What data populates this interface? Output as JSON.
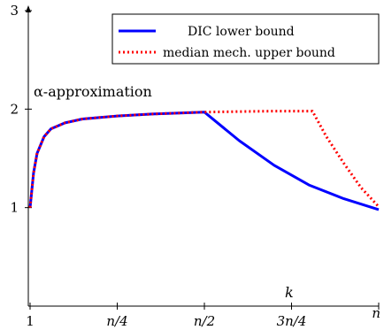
{
  "chart_data": {
    "type": "line",
    "title": "",
    "xlabel": "k",
    "ylabel": "α-approximation",
    "x_ticks": [
      "1",
      "n/4",
      "n/2",
      "3n/4",
      "n"
    ],
    "y_ticks": [
      "1",
      "2",
      "3"
    ],
    "x_range_fraction_of_n": [
      0,
      1
    ],
    "ylim": [
      0,
      3
    ],
    "grid": false,
    "legend_position": "top-right",
    "series": [
      {
        "name": "DIC lower bound",
        "color": "#0000ff",
        "style": "solid",
        "x_fraction_of_n": [
          0.0,
          0.01,
          0.02,
          0.04,
          0.06,
          0.1,
          0.15,
          0.25,
          0.35,
          0.5,
          0.6,
          0.7,
          0.8,
          0.9,
          1.0
        ],
        "values": [
          1.0,
          1.35,
          1.55,
          1.72,
          1.8,
          1.86,
          1.9,
          1.93,
          1.95,
          1.97,
          1.68,
          1.43,
          1.23,
          1.09,
          0.98
        ]
      },
      {
        "name": "median mech. upper bound",
        "color": "#ff0000",
        "style": "dotted",
        "x_fraction_of_n": [
          0.0,
          0.01,
          0.02,
          0.04,
          0.06,
          0.1,
          0.15,
          0.25,
          0.35,
          0.5,
          0.6,
          0.7,
          0.81,
          0.85,
          0.9,
          0.95,
          1.0
        ],
        "values": [
          1.0,
          1.35,
          1.55,
          1.72,
          1.8,
          1.86,
          1.9,
          1.93,
          1.95,
          1.97,
          1.975,
          1.98,
          1.98,
          1.72,
          1.45,
          1.2,
          1.01
        ]
      }
    ]
  }
}
